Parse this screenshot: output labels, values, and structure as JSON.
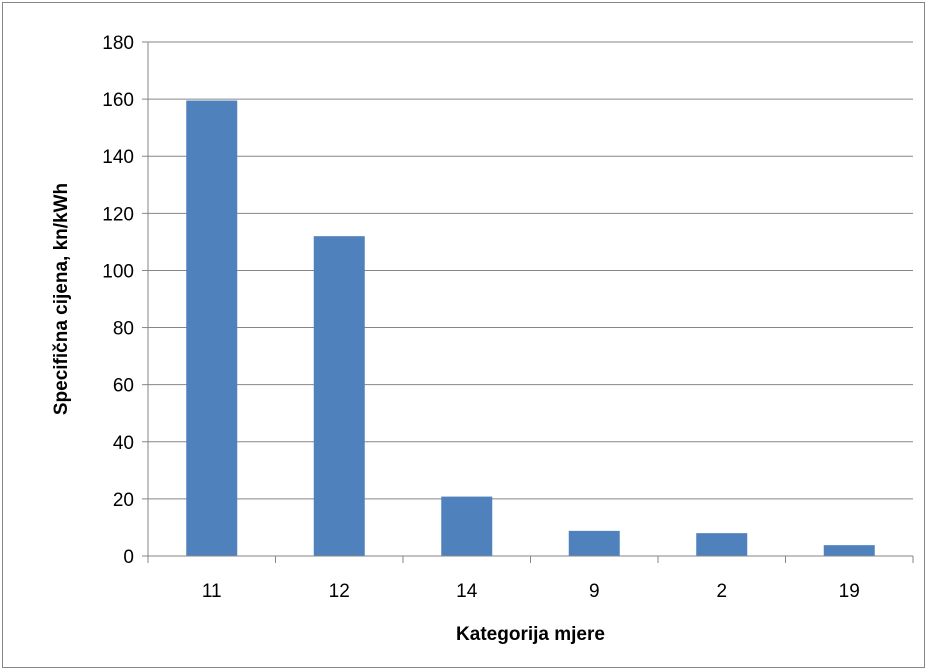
{
  "chart_data": {
    "type": "bar",
    "title": "",
    "xlabel": "Kategorija mjere",
    "ylabel": "Specifična cijena, kn/kWh",
    "categories": [
      "11",
      "12",
      "14",
      "9",
      "2",
      "19"
    ],
    "values": [
      159.5,
      112,
      20.8,
      8.8,
      8.0,
      3.8
    ],
    "ylim": [
      0,
      180
    ],
    "yticks": [
      "0",
      "20",
      "40",
      "60",
      "80",
      "100",
      "120",
      "140",
      "160",
      "180"
    ],
    "grid": true,
    "legend": "none",
    "bar_color": "#4F81BD",
    "grid_color": "#868686"
  }
}
